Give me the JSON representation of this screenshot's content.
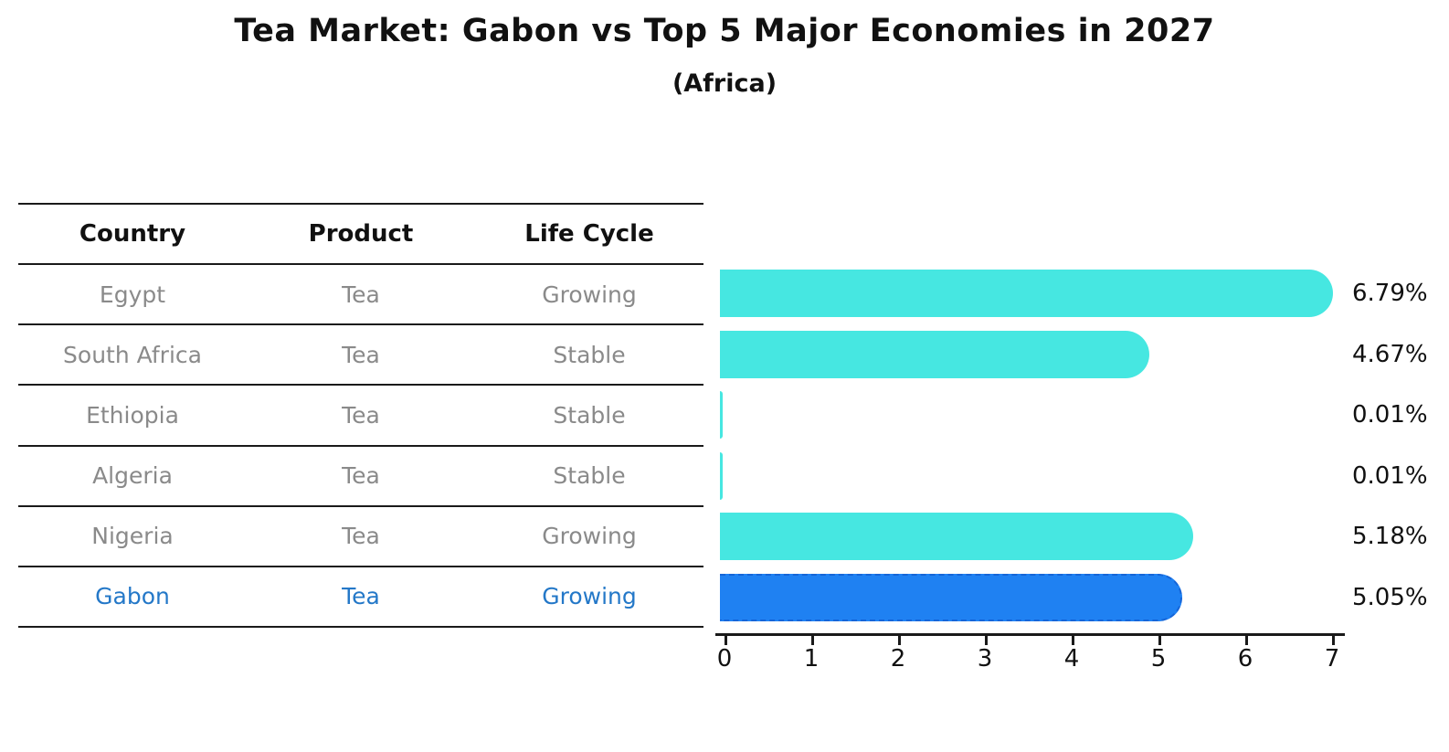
{
  "title": "Tea Market: Gabon vs Top 5 Major Economies in 2027",
  "subtitle": "(Africa)",
  "table": {
    "headers": [
      "Country",
      "Product",
      "Life Cycle"
    ],
    "rows": [
      {
        "country": "Egypt",
        "product": "Tea",
        "life_cycle": "Growing",
        "highlight": false
      },
      {
        "country": "South Africa",
        "product": "Tea",
        "life_cycle": "Stable",
        "highlight": false
      },
      {
        "country": "Ethiopia",
        "product": "Tea",
        "life_cycle": "Stable",
        "highlight": false
      },
      {
        "country": "Algeria",
        "product": "Tea",
        "life_cycle": "Stable",
        "highlight": false
      },
      {
        "country": "Nigeria",
        "product": "Tea",
        "life_cycle": "Growing",
        "highlight": false
      },
      {
        "country": "Gabon",
        "product": "Tea",
        "life_cycle": "Growing",
        "highlight": true
      }
    ]
  },
  "chart_data": {
    "type": "bar",
    "orientation": "horizontal",
    "title": "Tea Market: Gabon vs Top 5 Major Economies in 2027",
    "subtitle": "(Africa)",
    "categories": [
      "Egypt",
      "South Africa",
      "Ethiopia",
      "Algeria",
      "Nigeria",
      "Gabon"
    ],
    "values": [
      6.79,
      4.67,
      0.01,
      0.01,
      5.18,
      5.05
    ],
    "value_labels": [
      "6.79%",
      "4.67%",
      "0.01%",
      "0.01%",
      "5.18%",
      "5.05%"
    ],
    "x_ticks": [
      0,
      1,
      2,
      3,
      4,
      5,
      6,
      7
    ],
    "xlim": [
      0,
      7
    ],
    "xlabel": "",
    "ylabel": "",
    "grid": false,
    "legend": false,
    "bar_color": "#46e7e1",
    "highlight_bar_color": "#1f81f2",
    "highlight_index": 5
  },
  "colors": {
    "text_primary": "#111111",
    "text_muted": "#8a8a8a",
    "highlight_text": "#2478c8",
    "axis": "#1a1a1a",
    "background": "#ffffff"
  }
}
